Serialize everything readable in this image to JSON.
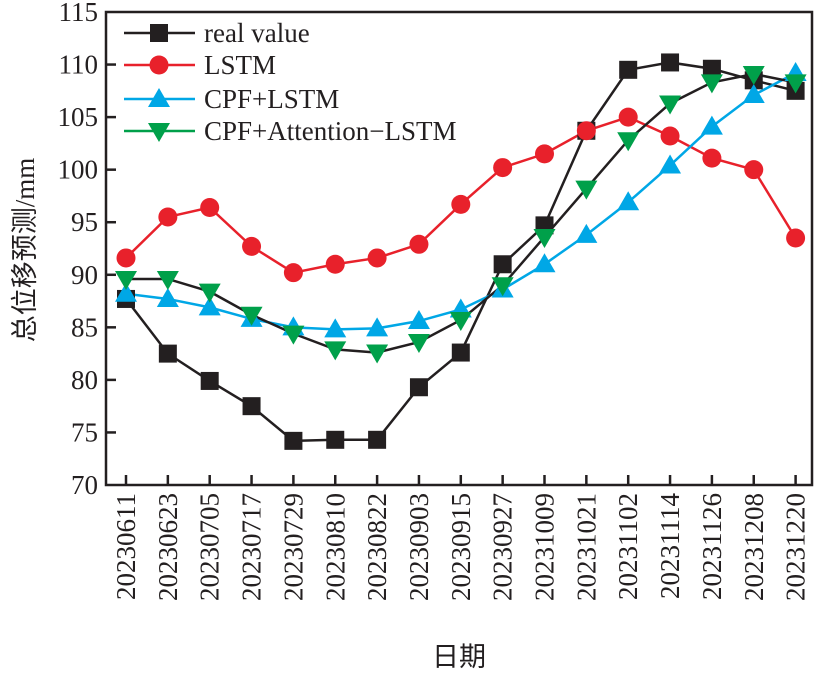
{
  "chart_data": {
    "type": "line",
    "title": "",
    "xlabel": "日期",
    "ylabel": "总位移预测/mm",
    "ylim": [
      70,
      115
    ],
    "yticks": [
      70,
      75,
      80,
      85,
      90,
      95,
      100,
      105,
      110,
      115
    ],
    "grid": false,
    "legend_position": "top-left",
    "categories": [
      "20230611",
      "20230623",
      "20230705",
      "20230717",
      "20230729",
      "20230810",
      "20230822",
      "20230903",
      "20230915",
      "20230927",
      "20231009",
      "20231021",
      "20231102",
      "20231114",
      "20231126",
      "20231208",
      "20231220"
    ],
    "series": [
      {
        "name": "real value",
        "marker": "square",
        "color": "#231f20",
        "line_color": "#231f20",
        "values": [
          87.7,
          82.5,
          79.9,
          77.5,
          74.2,
          74.3,
          74.3,
          79.3,
          82.6,
          91.0,
          94.7,
          103.7,
          109.5,
          110.2,
          109.6,
          108.5,
          107.5
        ]
      },
      {
        "name": "LSTM",
        "marker": "circle",
        "color": "#e8212b",
        "line_color": "#e8212b",
        "values": [
          91.6,
          95.5,
          96.4,
          92.7,
          90.2,
          91.0,
          91.6,
          92.9,
          96.7,
          100.2,
          101.5,
          103.7,
          105.0,
          103.2,
          101.1,
          100.0,
          93.5
        ]
      },
      {
        "name": "CPF+LSTM",
        "marker": "triangle-up",
        "color": "#00a7e6",
        "line_color": "#00a7e6",
        "values": [
          88.2,
          87.7,
          86.9,
          85.8,
          85.0,
          84.8,
          84.9,
          85.6,
          86.7,
          88.6,
          91.0,
          93.8,
          96.9,
          100.4,
          104.1,
          107.1,
          109.2
        ]
      },
      {
        "name": "CPF+Attention−LSTM",
        "marker": "triangle-down",
        "color": "#00a04a",
        "line_color": "#231f20",
        "values": [
          89.6,
          89.6,
          88.4,
          86.2,
          84.4,
          82.9,
          82.6,
          83.6,
          85.7,
          89.0,
          93.6,
          98.2,
          102.8,
          106.3,
          108.3,
          109.1,
          108.3
        ]
      }
    ]
  }
}
